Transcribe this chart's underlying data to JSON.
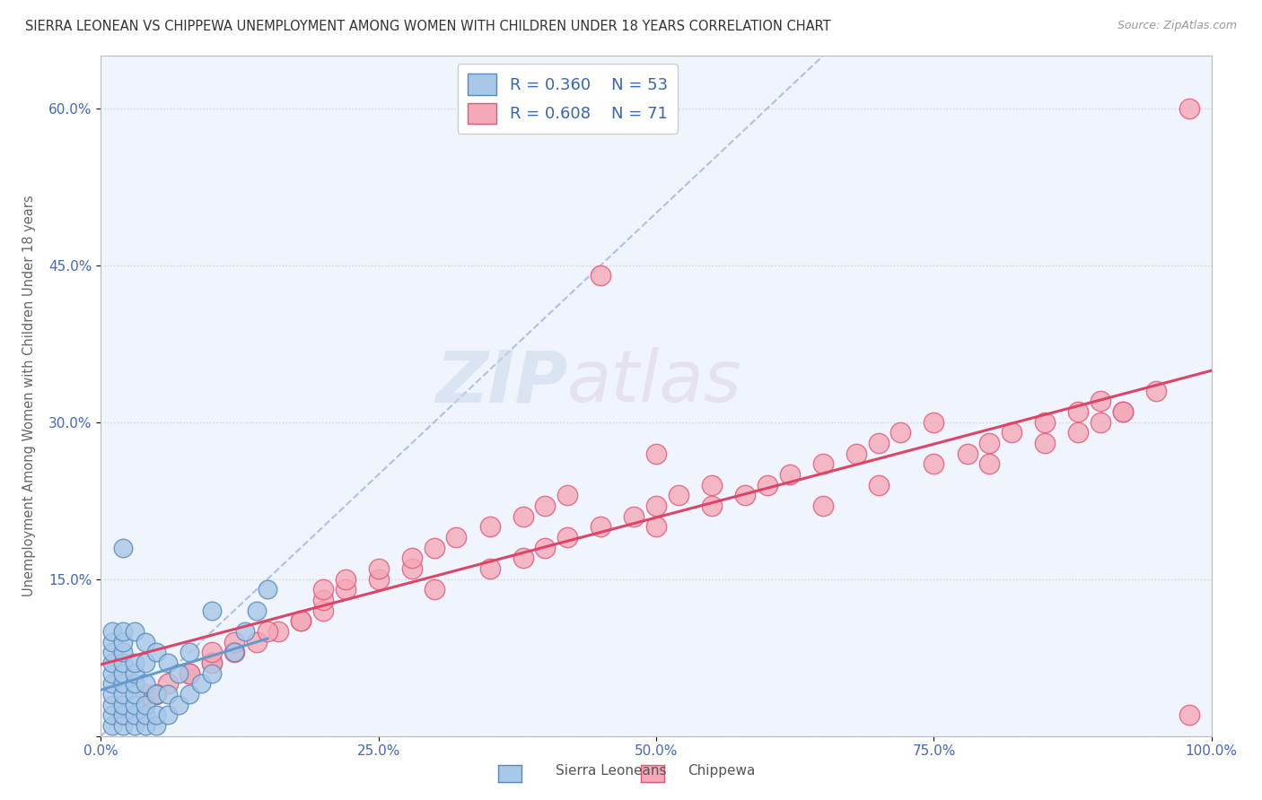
{
  "title": "SIERRA LEONEAN VS CHIPPEWA UNEMPLOYMENT AMONG WOMEN WITH CHILDREN UNDER 18 YEARS CORRELATION CHART",
  "source": "Source: ZipAtlas.com",
  "ylabel": "Unemployment Among Women with Children Under 18 years",
  "xlim": [
    0,
    1.0
  ],
  "ylim": [
    0,
    0.65
  ],
  "xtick_vals": [
    0.0,
    0.25,
    0.5,
    0.75,
    1.0
  ],
  "xtick_labels": [
    "0.0%",
    "25.0%",
    "50.0%",
    "75.0%",
    "100.0%"
  ],
  "ytick_vals": [
    0.0,
    0.15,
    0.3,
    0.45,
    0.6
  ],
  "ytick_labels": [
    "",
    "15.0%",
    "30.0%",
    "45.0%",
    "60.0%"
  ],
  "background_color": "#ffffff",
  "plot_bg_color": "#f0f4fc",
  "legend_r1": "R = 0.360",
  "legend_n1": "N = 53",
  "legend_r2": "R = 0.608",
  "legend_n2": "N = 71",
  "color_sierra": "#a8c8e8",
  "color_chippewa": "#f4a8b8",
  "color_sierra_edge": "#5588bb",
  "color_chippewa_edge": "#e05878",
  "color_sierra_line": "#6699cc",
  "color_chippewa_line": "#dd4466",
  "color_identity_line": "#aabbdd",
  "sierra_x": [
    0.01,
    0.01,
    0.01,
    0.01,
    0.01,
    0.01,
    0.01,
    0.01,
    0.01,
    0.01,
    0.02,
    0.02,
    0.02,
    0.02,
    0.02,
    0.02,
    0.02,
    0.02,
    0.02,
    0.02,
    0.03,
    0.03,
    0.03,
    0.03,
    0.03,
    0.03,
    0.03,
    0.03,
    0.04,
    0.04,
    0.04,
    0.04,
    0.04,
    0.04,
    0.05,
    0.05,
    0.05,
    0.05,
    0.06,
    0.06,
    0.06,
    0.07,
    0.07,
    0.08,
    0.08,
    0.09,
    0.1,
    0.1,
    0.12,
    0.13,
    0.14,
    0.15,
    0.02
  ],
  "sierra_y": [
    0.01,
    0.02,
    0.03,
    0.04,
    0.05,
    0.06,
    0.07,
    0.08,
    0.09,
    0.1,
    0.01,
    0.02,
    0.03,
    0.04,
    0.05,
    0.06,
    0.07,
    0.08,
    0.09,
    0.1,
    0.01,
    0.02,
    0.03,
    0.04,
    0.05,
    0.06,
    0.07,
    0.1,
    0.01,
    0.02,
    0.03,
    0.05,
    0.07,
    0.09,
    0.01,
    0.02,
    0.04,
    0.08,
    0.02,
    0.04,
    0.07,
    0.03,
    0.06,
    0.04,
    0.08,
    0.05,
    0.06,
    0.12,
    0.08,
    0.1,
    0.12,
    0.14,
    0.18
  ],
  "chippewa_x": [
    0.02,
    0.04,
    0.06,
    0.08,
    0.1,
    0.12,
    0.14,
    0.16,
    0.18,
    0.2,
    0.05,
    0.08,
    0.1,
    0.12,
    0.15,
    0.18,
    0.2,
    0.22,
    0.25,
    0.28,
    0.2,
    0.22,
    0.25,
    0.28,
    0.3,
    0.32,
    0.35,
    0.38,
    0.4,
    0.42,
    0.3,
    0.35,
    0.38,
    0.4,
    0.42,
    0.45,
    0.48,
    0.5,
    0.52,
    0.55,
    0.5,
    0.55,
    0.58,
    0.6,
    0.62,
    0.65,
    0.68,
    0.7,
    0.72,
    0.75,
    0.65,
    0.7,
    0.75,
    0.78,
    0.8,
    0.82,
    0.85,
    0.88,
    0.9,
    0.92,
    0.8,
    0.85,
    0.88,
    0.9,
    0.92,
    0.95,
    0.98,
    0.1,
    0.5,
    0.98,
    0.45
  ],
  "chippewa_y": [
    0.02,
    0.04,
    0.05,
    0.06,
    0.07,
    0.08,
    0.09,
    0.1,
    0.11,
    0.12,
    0.04,
    0.06,
    0.07,
    0.09,
    0.1,
    0.11,
    0.13,
    0.14,
    0.15,
    0.16,
    0.14,
    0.15,
    0.16,
    0.17,
    0.18,
    0.19,
    0.2,
    0.21,
    0.22,
    0.23,
    0.14,
    0.16,
    0.17,
    0.18,
    0.19,
    0.2,
    0.21,
    0.22,
    0.23,
    0.24,
    0.2,
    0.22,
    0.23,
    0.24,
    0.25,
    0.26,
    0.27,
    0.28,
    0.29,
    0.3,
    0.22,
    0.24,
    0.26,
    0.27,
    0.28,
    0.29,
    0.3,
    0.31,
    0.32,
    0.31,
    0.26,
    0.28,
    0.29,
    0.3,
    0.31,
    0.33,
    0.6,
    0.08,
    0.27,
    0.02,
    0.44
  ]
}
